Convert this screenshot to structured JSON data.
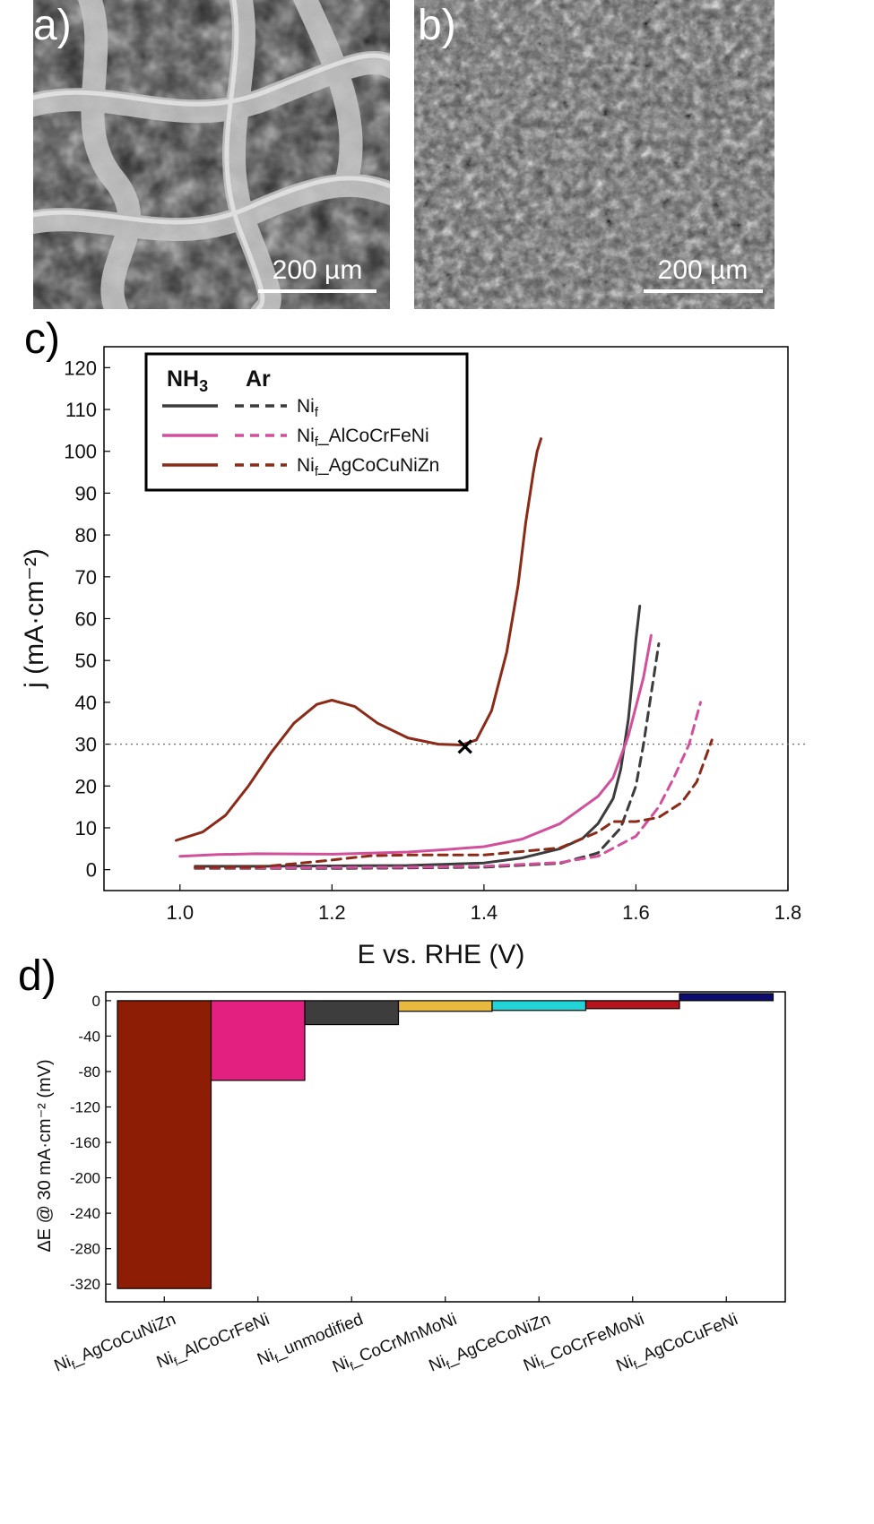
{
  "panels": {
    "a": {
      "letter": "a)",
      "scale_bar": "200 µm"
    },
    "b": {
      "letter": "b)",
      "scale_bar": "200 µm"
    },
    "c": {
      "letter": "c)"
    },
    "d": {
      "letter": "d)"
    }
  },
  "chart_data": [
    {
      "type": "line",
      "xlabel": "E vs. RHE (V)",
      "ylabel": "j (mA·cm⁻²)",
      "xlim": [
        0.9,
        1.8
      ],
      "ylim": [
        -5,
        125
      ],
      "xticks": [
        1.0,
        1.2,
        1.4,
        1.6,
        1.8
      ],
      "yticks": [
        0,
        10,
        20,
        30,
        40,
        50,
        60,
        70,
        80,
        90,
        100,
        110,
        120
      ],
      "grid": false,
      "legend_position": "top-left",
      "legend_headers": [
        "NH3",
        "Ar"
      ],
      "reference_line": {
        "y": 30,
        "style": "dotted"
      },
      "marker": {
        "symbol": "×",
        "x": 1.375,
        "y": 29.5
      },
      "series": [
        {
          "name": "Nif",
          "condition": "NH3",
          "color": "#3c3c3c",
          "dash": "solid",
          "x": [
            1.02,
            1.1,
            1.2,
            1.3,
            1.4,
            1.45,
            1.5,
            1.53,
            1.55,
            1.57,
            1.58,
            1.59,
            1.595,
            1.6,
            1.605
          ],
          "y": [
            0.8,
            0.8,
            0.9,
            1.0,
            1.6,
            2.8,
            5.0,
            7.5,
            11,
            17,
            24,
            36,
            45,
            55,
            63
          ]
        },
        {
          "name": "Nif",
          "condition": "Ar",
          "color": "#3c3c3c",
          "dash": "dashed",
          "x": [
            1.02,
            1.1,
            1.2,
            1.3,
            1.4,
            1.5,
            1.55,
            1.58,
            1.6,
            1.61,
            1.62,
            1.63
          ],
          "y": [
            0.3,
            0.3,
            0.3,
            0.4,
            0.6,
            1.5,
            4,
            10,
            20,
            30,
            42,
            54
          ]
        },
        {
          "name": "Nif_AlCoCrFeNi",
          "condition": "NH3",
          "color": "#d2509b",
          "dash": "solid",
          "x": [
            1.0,
            1.05,
            1.1,
            1.2,
            1.3,
            1.35,
            1.4,
            1.45,
            1.5,
            1.55,
            1.57,
            1.59,
            1.61,
            1.62
          ],
          "y": [
            3.2,
            3.6,
            3.8,
            3.7,
            4.2,
            4.8,
            5.5,
            7.3,
            11,
            17.5,
            22,
            32,
            46,
            56
          ]
        },
        {
          "name": "Nif_AlCoCrFeNi",
          "condition": "Ar",
          "color": "#d2509b",
          "dash": "dashed",
          "x": [
            1.02,
            1.1,
            1.2,
            1.3,
            1.4,
            1.5,
            1.55,
            1.6,
            1.63,
            1.65,
            1.67,
            1.685
          ],
          "y": [
            0.4,
            0.4,
            0.5,
            0.6,
            0.8,
            1.7,
            3.2,
            8,
            15,
            22,
            30,
            40
          ]
        },
        {
          "name": "Nif_AgCoCuNiZn",
          "condition": "NH3",
          "color": "#8c2a18",
          "dash": "solid",
          "x": [
            0.995,
            1.03,
            1.06,
            1.09,
            1.12,
            1.15,
            1.18,
            1.2,
            1.23,
            1.26,
            1.3,
            1.34,
            1.37,
            1.39,
            1.41,
            1.43,
            1.445,
            1.455,
            1.465,
            1.47,
            1.475
          ],
          "y": [
            7,
            9,
            13,
            20,
            28,
            35,
            39.5,
            40.5,
            39,
            35,
            31.5,
            30,
            29.8,
            31,
            38,
            52,
            68,
            83,
            95,
            100,
            103
          ]
        },
        {
          "name": "Nif_AgCoCuNiZn",
          "condition": "Ar",
          "color": "#8c2a18",
          "dash": "dashed",
          "x": [
            1.02,
            1.1,
            1.15,
            1.2,
            1.25,
            1.3,
            1.4,
            1.5,
            1.55,
            1.57,
            1.6,
            1.63,
            1.66,
            1.68,
            1.7
          ],
          "y": [
            0.5,
            0.6,
            1.4,
            2.3,
            3.3,
            3.5,
            3.5,
            5.2,
            9,
            11.5,
            11.5,
            12.5,
            16,
            21,
            31
          ]
        }
      ]
    },
    {
      "type": "bar",
      "ylabel": "ΔE @ 30 mA·cm⁻² (mV)",
      "ylim": [
        -340,
        10
      ],
      "yticks": [
        0,
        -40,
        -80,
        -120,
        -160,
        -200,
        -240,
        -280,
        -320
      ],
      "categories": [
        "Nif_AgCoCuNiZn",
        "Nif_AlCoCrFeNi",
        "Nif_unmodified",
        "Nif_CoCrMnMoNi",
        "Nif_AgCeCoNiZn",
        "Nif_CoCrFeMoNi",
        "Nif_AgCoCuFeNi"
      ],
      "values": [
        -325,
        -90,
        -27,
        -12,
        -11,
        -9,
        8
      ],
      "colors": [
        "#8e1d06",
        "#e3207f",
        "#3d3d3d",
        "#e8b83f",
        "#22d3d8",
        "#b8121b",
        "#0c0d6e"
      ]
    }
  ]
}
